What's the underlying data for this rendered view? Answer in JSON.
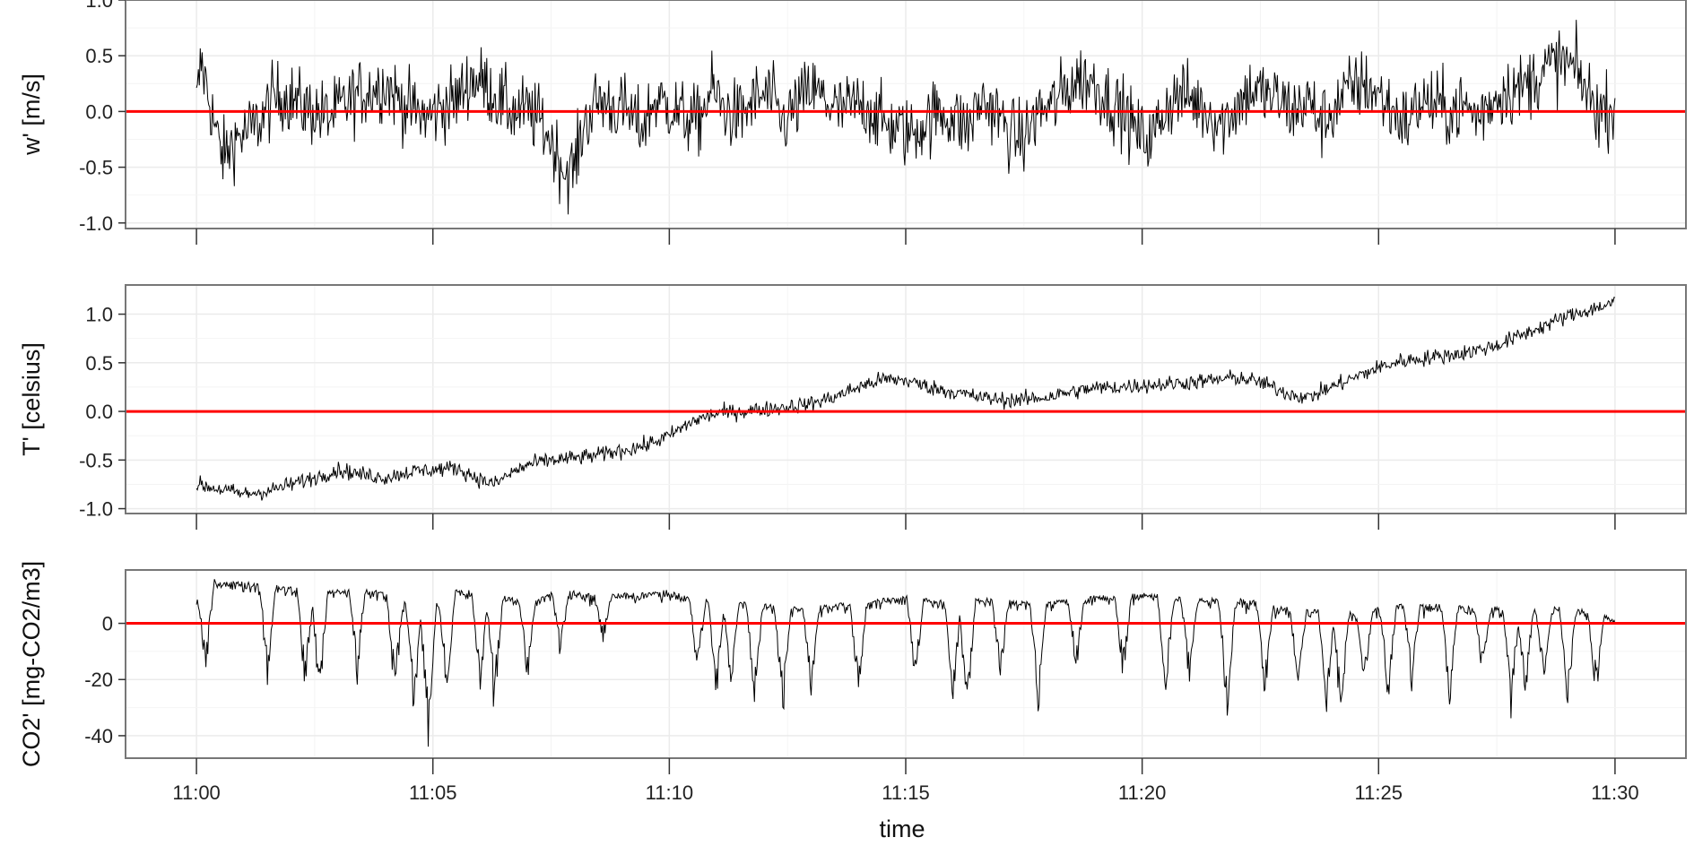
{
  "figure": {
    "xlabel": "time",
    "zero_line_color": "#ff0000",
    "trace_color": "#000000",
    "panel_border_color": "#777777",
    "grid_color": "#ebebeb"
  },
  "chart_data": [
    {
      "type": "line",
      "panel": "w",
      "ylabel": "w' [m/s]",
      "xlabel": "",
      "xlim": [
        "10:58:30",
        "11:31:30"
      ],
      "ylim": [
        -1.05,
        1.0
      ],
      "yticks": [
        1.0,
        0.5,
        0.0,
        -0.5,
        -1.0
      ],
      "ytick_labels": [
        "1.0",
        "0.5",
        "0.0",
        "-0.5",
        "-1.0"
      ],
      "xticks": [
        "11:00",
        "11:05",
        "11:10",
        "11:15",
        "11:20",
        "11:25",
        "11:30"
      ],
      "show_xtick_labels": false,
      "reference_line": 0,
      "grid": true,
      "series": [
        {
          "x_minutes_after_11": [
            0.0,
            0.1,
            0.2,
            0.35,
            0.5,
            0.6,
            0.8,
            1.0,
            1.2,
            1.4,
            1.6,
            1.8,
            2.0,
            2.2,
            2.5,
            2.8,
            3.1,
            3.4,
            3.7,
            4.0,
            4.3,
            4.6,
            4.9,
            5.2,
            5.5,
            5.8,
            6.1,
            6.4,
            6.7,
            7.0,
            7.3,
            7.6,
            7.8,
            8.0,
            8.2,
            8.5,
            8.8,
            9.1,
            9.4,
            9.7,
            10.0,
            10.3,
            10.6,
            10.9,
            11.2,
            11.5,
            11.8,
            12.1,
            12.4,
            12.7,
            13.0,
            13.3,
            13.6,
            13.9,
            14.2,
            14.5,
            14.8,
            15.1,
            15.4,
            15.7,
            16.0,
            16.3,
            16.6,
            16.9,
            17.2,
            17.5,
            17.8,
            18.1,
            18.4,
            18.7,
            19.0,
            19.3,
            19.6,
            19.9,
            20.2,
            20.5,
            20.8,
            21.1,
            21.4,
            21.7,
            22.0,
            22.3,
            22.6,
            22.9,
            23.2,
            23.5,
            23.8,
            24.1,
            24.4,
            24.7,
            25.0,
            25.3,
            25.6,
            25.9,
            26.2,
            26.5,
            26.8,
            27.1,
            27.4,
            27.7,
            28.0,
            28.3,
            28.6,
            28.9,
            29.2,
            29.5,
            29.7,
            30.0
          ],
          "y_center": [
            0.05,
            0.45,
            0.25,
            -0.05,
            -0.35,
            -0.4,
            -0.25,
            -0.2,
            -0.15,
            -0.05,
            0.1,
            0.15,
            0.12,
            0.05,
            0.0,
            -0.05,
            0.05,
            0.15,
            0.2,
            0.25,
            0.1,
            0.0,
            -0.05,
            0.05,
            0.1,
            0.3,
            0.25,
            0.1,
            0.0,
            0.0,
            -0.1,
            -0.35,
            -0.55,
            -0.5,
            -0.1,
            0.1,
            0.05,
            0.0,
            -0.15,
            0.1,
            0.05,
            -0.05,
            -0.1,
            0.2,
            0.0,
            -0.05,
            0.1,
            0.15,
            -0.1,
            0.05,
            0.2,
            0.1,
            0.0,
            0.05,
            0.05,
            -0.1,
            -0.15,
            -0.2,
            -0.1,
            0.0,
            -0.05,
            -0.15,
            0.1,
            0.0,
            -0.2,
            -0.25,
            0.0,
            0.05,
            0.2,
            0.3,
            0.25,
            0.1,
            0.0,
            -0.2,
            -0.25,
            0.05,
            0.15,
            0.1,
            0.0,
            -0.1,
            0.05,
            0.2,
            0.15,
            0.1,
            0.0,
            0.1,
            -0.1,
            0.05,
            0.2,
            0.25,
            0.15,
            0.0,
            -0.1,
            0.1,
            0.05,
            0.0,
            0.05,
            -0.05,
            0.1,
            0.2,
            0.2,
            0.3,
            0.4,
            0.45,
            0.35,
            0.1,
            0.0,
            0.05
          ],
          "y_spread": 0.55
        }
      ]
    },
    {
      "type": "line",
      "panel": "T",
      "ylabel": "T' [celsius]",
      "xlabel": "",
      "xlim": [
        "10:58:30",
        "11:31:30"
      ],
      "ylim": [
        -1.05,
        1.3
      ],
      "yticks": [
        1.0,
        0.5,
        0.0,
        -0.5,
        -1.0
      ],
      "ytick_labels": [
        "1.0",
        "0.5",
        "0.0",
        "-0.5",
        "-1.0"
      ],
      "xticks": [
        "11:00",
        "11:05",
        "11:10",
        "11:15",
        "11:20",
        "11:25",
        "11:30"
      ],
      "show_xtick_labels": false,
      "reference_line": 0,
      "grid": true,
      "series": [
        {
          "x_minutes_after_11": [
            0.0,
            0.5,
            1.0,
            1.5,
            2.0,
            2.5,
            3.0,
            3.5,
            4.0,
            4.5,
            5.0,
            5.5,
            6.0,
            6.3,
            6.6,
            7.0,
            7.5,
            8.0,
            8.5,
            9.0,
            9.5,
            10.0,
            10.5,
            11.0,
            11.5,
            12.0,
            12.5,
            13.0,
            13.5,
            14.0,
            14.5,
            15.0,
            15.5,
            16.0,
            16.5,
            17.0,
            17.5,
            18.0,
            18.5,
            19.0,
            19.5,
            20.0,
            20.5,
            21.0,
            21.5,
            22.0,
            22.5,
            23.0,
            23.5,
            24.0,
            24.5,
            25.0,
            25.5,
            26.0,
            26.5,
            27.0,
            27.5,
            28.0,
            28.5,
            29.0,
            29.5,
            30.0
          ],
          "y_center": [
            -0.75,
            -0.8,
            -0.85,
            -0.82,
            -0.75,
            -0.68,
            -0.6,
            -0.65,
            -0.68,
            -0.62,
            -0.6,
            -0.58,
            -0.7,
            -0.75,
            -0.65,
            -0.55,
            -0.5,
            -0.48,
            -0.45,
            -0.4,
            -0.35,
            -0.25,
            -0.1,
            -0.02,
            0.0,
            0.02,
            0.05,
            0.08,
            0.15,
            0.25,
            0.33,
            0.32,
            0.25,
            0.2,
            0.15,
            0.12,
            0.12,
            0.15,
            0.2,
            0.24,
            0.25,
            0.27,
            0.28,
            0.3,
            0.32,
            0.35,
            0.3,
            0.2,
            0.14,
            0.25,
            0.35,
            0.45,
            0.52,
            0.55,
            0.58,
            0.62,
            0.68,
            0.78,
            0.88,
            0.98,
            1.05,
            1.12
          ],
          "y_spread": 0.14
        }
      ]
    },
    {
      "type": "line",
      "panel": "CO2",
      "ylabel": "CO2' [mg-CO2/m3]",
      "xlabel": "time",
      "xlim": [
        "10:58:30",
        "11:31:30"
      ],
      "ylim": [
        -48,
        19
      ],
      "yticks": [
        0,
        -20,
        -40
      ],
      "ytick_labels": [
        "0",
        "-20",
        "-40"
      ],
      "xticks": [
        "11:00",
        "11:05",
        "11:10",
        "11:15",
        "11:20",
        "11:25",
        "11:30"
      ],
      "xtick_labels": [
        "11:00",
        "11:05",
        "11:10",
        "11:15",
        "11:20",
        "11:25",
        "11:30"
      ],
      "show_xtick_labels": true,
      "reference_line": 0,
      "grid": true,
      "series": [
        {
          "x_minutes_after_11": [
            0.0,
            0.3,
            0.6,
            0.9,
            1.2,
            1.5,
            2.0,
            2.5,
            3.0,
            3.5,
            4.0,
            4.5,
            5.0,
            5.5,
            6.0,
            6.5,
            7.0,
            7.5,
            8.0,
            8.5,
            9.0,
            9.5,
            10.0,
            10.5,
            11.0,
            11.5,
            12.0,
            12.5,
            13.0,
            13.5,
            14.0,
            14.5,
            15.0,
            15.5,
            16.0,
            16.5,
            17.0,
            17.5,
            18.0,
            18.5,
            19.0,
            19.5,
            20.0,
            20.5,
            21.0,
            21.5,
            22.0,
            22.5,
            23.0,
            23.5,
            24.0,
            24.5,
            25.0,
            25.5,
            26.0,
            26.5,
            27.0,
            27.5,
            28.0,
            28.5,
            29.0,
            29.5,
            30.0
          ],
          "y_top": [
            8,
            16,
            15,
            15,
            15,
            14,
            13,
            12,
            12,
            13,
            11,
            8,
            7,
            12,
            12,
            10,
            8,
            11,
            12,
            10,
            11,
            11,
            12,
            9,
            9,
            8,
            7,
            6,
            6,
            7,
            8,
            9,
            10,
            9,
            8,
            9,
            9,
            8,
            8,
            9,
            10,
            10,
            11,
            10,
            9,
            9,
            9,
            8,
            6,
            5,
            5,
            4,
            6,
            7,
            7,
            7,
            6,
            6,
            5,
            6,
            6,
            5,
            2
          ],
          "dip_x_minutes": [
            0.2,
            1.5,
            2.3,
            2.6,
            3.4,
            4.2,
            4.6,
            4.9,
            5.3,
            6.0,
            6.3,
            7.0,
            7.7,
            8.6,
            10.6,
            11.0,
            11.3,
            11.8,
            12.4,
            13.0,
            14.0,
            15.2,
            16.0,
            16.3,
            17.0,
            17.8,
            18.6,
            19.6,
            20.5,
            21.0,
            21.8,
            22.6,
            23.3,
            23.9,
            24.2,
            24.7,
            25.2,
            25.7,
            26.5,
            27.2,
            27.8,
            28.1,
            28.5,
            29.0,
            29.6
          ],
          "dip_depth": [
            -20,
            -22,
            -27,
            -31,
            -22,
            -30,
            -36,
            -45,
            -30,
            -30,
            -35,
            -22,
            -15,
            -8,
            -20,
            -30,
            -25,
            -32,
            -35,
            -28,
            -30,
            -25,
            -30,
            -40,
            -25,
            -35,
            -20,
            -22,
            -28,
            -25,
            -38,
            -30,
            -28,
            -32,
            -37,
            -25,
            -30,
            -25,
            -33,
            -20,
            -35,
            -30,
            -25,
            -32,
            -28
          ]
        }
      ]
    }
  ]
}
